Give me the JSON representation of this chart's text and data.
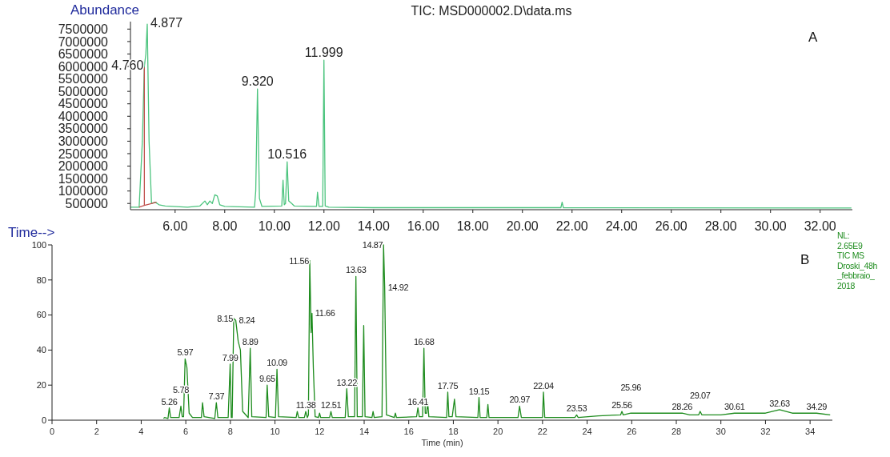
{
  "chart_data": [
    {
      "type": "line",
      "title": "TIC: MSD000002.D\\data.ms",
      "xlabel": "Time-->",
      "ylabel": "Abundance",
      "xlim": [
        4.2,
        33.3
      ],
      "xticks": [
        {
          "value": 6,
          "label": "6.00"
        },
        {
          "value": 8,
          "label": "8.00"
        },
        {
          "value": 10,
          "label": "10.00"
        },
        {
          "value": 12,
          "label": "12.00"
        },
        {
          "value": 14,
          "label": "14.00"
        },
        {
          "value": 16,
          "label": "16.00"
        },
        {
          "value": 18,
          "label": "18.00"
        },
        {
          "value": 20,
          "label": "20.00"
        },
        {
          "value": 22,
          "label": "22.00"
        },
        {
          "value": 24,
          "label": "24.00"
        },
        {
          "value": 26,
          "label": "26.00"
        },
        {
          "value": 28,
          "label": "28.00"
        },
        {
          "value": 30,
          "label": "30.00"
        },
        {
          "value": 32,
          "label": "32.00"
        }
      ],
      "ylim": [
        250000,
        7800000
      ],
      "yticks": [
        500000,
        1000000,
        1500000,
        2000000,
        2500000,
        3000000,
        3500000,
        4000000,
        4500000,
        5000000,
        5500000,
        6000000,
        6500000,
        7000000,
        7500000
      ],
      "series": [
        {
          "color": "#4cc47e",
          "x": [
            4.2,
            4.55,
            4.68,
            4.76,
            4.82,
            4.877,
            4.95,
            5.05,
            5.2,
            5.35,
            5.6,
            6.5,
            7.0,
            7.2,
            7.3,
            7.4,
            7.5,
            7.6,
            7.7,
            7.8,
            8.0,
            9.2,
            9.25,
            9.32,
            9.4,
            9.5,
            10.3,
            10.35,
            10.4,
            10.45,
            10.516,
            10.58,
            10.7,
            10.8,
            11.7,
            11.74,
            11.8,
            11.95,
            11.999,
            12.05,
            12.2,
            14.0,
            21.55,
            21.6,
            21.65,
            33.26
          ],
          "values": [
            350000,
            350000,
            3000000,
            6000000,
            6500000,
            7700000,
            3000000,
            500000,
            550000,
            450000,
            400000,
            350000,
            400000,
            600000,
            450000,
            600000,
            500000,
            850000,
            800000,
            450000,
            380000,
            350000,
            1000000,
            5100000,
            700000,
            380000,
            400000,
            1430000,
            450000,
            500000,
            2170000,
            600000,
            500000,
            400000,
            380000,
            950000,
            380000,
            380000,
            6250000,
            400000,
            350000,
            330000,
            330000,
            550000,
            330000,
            320000
          ]
        },
        {
          "color": "#c0504d",
          "x": [
            4.55,
            4.76,
            4.76,
            4.76,
            5.25
          ],
          "values": [
            350000,
            420000,
            5950000,
            420000,
            550000
          ]
        }
      ],
      "annotations": [
        {
          "text": "4.760",
          "x": 4.76,
          "y": 6000000
        },
        {
          "text": "4.877",
          "x": 4.877,
          "y": 7700000
        },
        {
          "text": "9.320",
          "x": 9.32,
          "y": 5100000
        },
        {
          "text": "10.516",
          "x": 10.516,
          "y": 2170000
        },
        {
          "text": "11.999",
          "x": 11.999,
          "y": 6250000
        },
        "A"
      ]
    },
    {
      "type": "line",
      "xlabel": "Time (min)",
      "xlim": [
        0,
        35
      ],
      "xticks": [
        0,
        2,
        4,
        6,
        8,
        10,
        12,
        14,
        16,
        18,
        20,
        22,
        24,
        26,
        28,
        30,
        32,
        34
      ],
      "ylim": [
        0,
        100
      ],
      "yticks": [
        0,
        20,
        40,
        60,
        80,
        100
      ],
      "series": [
        {
          "color": "#1e8c1e",
          "x": [
            5.0,
            5.05,
            5.2,
            5.26,
            5.32,
            5.7,
            5.78,
            5.84,
            5.9,
            5.97,
            6.05,
            6.15,
            6.3,
            6.7,
            6.75,
            6.82,
            7.3,
            7.37,
            7.44,
            7.9,
            7.95,
            7.99,
            8.04,
            8.08,
            8.15,
            8.24,
            8.35,
            8.45,
            8.55,
            8.8,
            8.89,
            8.96,
            9.6,
            9.65,
            9.72,
            10.02,
            10.09,
            10.16,
            10.95,
            11.0,
            11.06,
            11.32,
            11.38,
            11.45,
            11.5,
            11.56,
            11.62,
            11.66,
            11.72,
            11.8,
            11.95,
            12.0,
            12.05,
            12.45,
            12.51,
            12.57,
            13.15,
            13.22,
            13.29,
            13.57,
            13.63,
            13.69,
            13.92,
            13.98,
            14.04,
            14.35,
            14.4,
            14.45,
            14.8,
            14.87,
            14.92,
            15.0,
            15.35,
            15.4,
            15.45,
            16.35,
            16.41,
            16.47,
            16.62,
            16.68,
            16.74,
            16.8,
            16.85,
            16.9,
            17.7,
            17.75,
            17.8,
            17.95,
            18.05,
            18.12,
            19.1,
            19.15,
            19.2,
            19.5,
            19.55,
            19.6,
            20.9,
            20.97,
            21.05,
            22.0,
            22.04,
            22.1,
            23.45,
            23.53,
            23.6,
            24.5,
            25.5,
            25.56,
            25.62,
            25.96,
            27.0,
            28.26,
            28.6,
            29.0,
            29.07,
            29.15,
            30.0,
            30.61,
            32.0,
            32.63,
            33.2,
            34.29,
            34.9
          ],
          "values": [
            1,
            1.5,
            1,
            7,
            1.5,
            1.5,
            8,
            2,
            2,
            35,
            30,
            4,
            1.5,
            1.5,
            10,
            2,
            1,
            10,
            1.5,
            1.5,
            18,
            32,
            1.5,
            1.5,
            58,
            57,
            45,
            40,
            5,
            1.5,
            41,
            2,
            1.5,
            20,
            2,
            1.5,
            29,
            2,
            1.5,
            5,
            1.5,
            1.5,
            5,
            1.5,
            3,
            91,
            50,
            61,
            30,
            2,
            1.5,
            4,
            1.5,
            1.5,
            5,
            1.5,
            1.5,
            18,
            2,
            2,
            82,
            2,
            2,
            54,
            2,
            1.5,
            5,
            1.5,
            2,
            100,
            76,
            3,
            1.5,
            4,
            1.5,
            2,
            7,
            2,
            2,
            41,
            4,
            4,
            10,
            2,
            1.5,
            16,
            2,
            2,
            12,
            2,
            1.5,
            13,
            1.5,
            1.5,
            9,
            1.5,
            1.5,
            8,
            1.5,
            1.5,
            16,
            1.5,
            1.5,
            3,
            1.5,
            2.5,
            3,
            5,
            3,
            4,
            4,
            4,
            3,
            3,
            5,
            3,
            3,
            4,
            4,
            6,
            4,
            4,
            3
          ]
        }
      ],
      "annotations": [
        {
          "text": "5.26",
          "x": 5.26,
          "y": 7
        },
        {
          "text": "5.78",
          "x": 5.78,
          "y": 8
        },
        {
          "text": "5.97",
          "x": 5.97,
          "y": 35
        },
        {
          "text": "7.37",
          "x": 7.37,
          "y": 10
        },
        {
          "text": "7.99",
          "x": 7.99,
          "y": 32
        },
        {
          "text": "8.15",
          "x": 8.15,
          "y": 58
        },
        {
          "text": "8.24",
          "x": 8.24,
          "y": 57
        },
        {
          "text": "8.89",
          "x": 8.89,
          "y": 41
        },
        {
          "text": "9.65",
          "x": 9.65,
          "y": 20
        },
        {
          "text": "10.09",
          "x": 10.09,
          "y": 29
        },
        {
          "text": "11.38",
          "x": 11.38,
          "y": 5
        },
        {
          "text": "11.56",
          "x": 11.56,
          "y": 91
        },
        {
          "text": "11.66",
          "x": 11.66,
          "y": 61
        },
        {
          "text": "12.51",
          "x": 12.51,
          "y": 5
        },
        {
          "text": "13.22",
          "x": 13.22,
          "y": 18
        },
        {
          "text": "13.63",
          "x": 13.63,
          "y": 82
        },
        {
          "text": "14.87",
          "x": 14.87,
          "y": 100
        },
        {
          "text": "14.92",
          "x": 14.92,
          "y": 76
        },
        {
          "text": "16.41",
          "x": 16.41,
          "y": 7
        },
        {
          "text": "16.68",
          "x": 16.68,
          "y": 41
        },
        {
          "text": "17.75",
          "x": 17.75,
          "y": 16
        },
        {
          "text": "19.15",
          "x": 19.15,
          "y": 13
        },
        {
          "text": "20.97",
          "x": 20.97,
          "y": 8
        },
        {
          "text": "22.04",
          "x": 22.04,
          "y": 16
        },
        {
          "text": "23.53",
          "x": 23.53,
          "y": 3
        },
        {
          "text": "25.56",
          "x": 25.56,
          "y": 5
        },
        {
          "text": "25.96",
          "x": 25.96,
          "y": 4
        },
        {
          "text": "28.26",
          "x": 28.26,
          "y": 4
        },
        {
          "text": "29.07",
          "x": 29.07,
          "y": 5
        },
        {
          "text": "30.61",
          "x": 30.61,
          "y": 4
        },
        {
          "text": "32.63",
          "x": 32.63,
          "y": 6
        },
        {
          "text": "34.29",
          "x": 34.29,
          "y": 4
        },
        "B",
        "NL:\n2.65E9\nTIC MS\nDroski_48h\n_febbraio_\n2018"
      ]
    }
  ]
}
